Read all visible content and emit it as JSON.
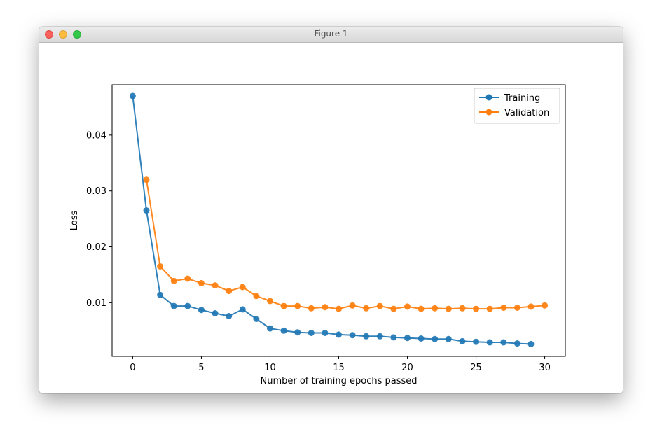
{
  "window": {
    "title": "Figure 1"
  },
  "chart_data": {
    "type": "line",
    "title": "",
    "xlabel": "Number of training epochs passed",
    "ylabel": "Loss",
    "xlim": [
      -1.5,
      31.5
    ],
    "ylim": [
      0.0004,
      0.049
    ],
    "xticks": [
      0,
      5,
      10,
      15,
      20,
      25,
      30
    ],
    "yticks": [
      0.01,
      0.02,
      0.03,
      0.04
    ],
    "ytick_labels": [
      "0.01",
      "0.02",
      "0.03",
      "0.04"
    ],
    "legend_position": "top-right",
    "grid": false,
    "series": [
      {
        "name": "Training",
        "color": "#1f77b4",
        "x": [
          0,
          1,
          2,
          3,
          4,
          5,
          6,
          7,
          8,
          9,
          10,
          11,
          12,
          13,
          14,
          15,
          16,
          17,
          18,
          19,
          20,
          21,
          22,
          23,
          24,
          25,
          26,
          27,
          28,
          29
        ],
        "y": [
          0.047,
          0.0265,
          0.0114,
          0.0094,
          0.0094,
          0.0087,
          0.0081,
          0.0076,
          0.0088,
          0.0071,
          0.0054,
          0.005,
          0.0047,
          0.0046,
          0.0046,
          0.0043,
          0.0042,
          0.004,
          0.004,
          0.0038,
          0.0037,
          0.0036,
          0.0035,
          0.0035,
          0.0031,
          0.003,
          0.0029,
          0.0029,
          0.0027,
          0.0026
        ]
      },
      {
        "name": "Validation",
        "color": "#ff7f0e",
        "x": [
          1,
          2,
          3,
          4,
          5,
          6,
          7,
          8,
          9,
          10,
          11,
          12,
          13,
          14,
          15,
          16,
          17,
          18,
          19,
          20,
          21,
          22,
          23,
          24,
          25,
          26,
          27,
          28,
          29,
          30
        ],
        "y": [
          0.032,
          0.0165,
          0.0139,
          0.0143,
          0.0135,
          0.0131,
          0.0121,
          0.0128,
          0.0112,
          0.0103,
          0.0094,
          0.0094,
          0.009,
          0.0092,
          0.0089,
          0.0095,
          0.009,
          0.0094,
          0.0089,
          0.0093,
          0.0089,
          0.009,
          0.0089,
          0.009,
          0.0089,
          0.0089,
          0.0091,
          0.0091,
          0.0093,
          0.0095
        ]
      }
    ]
  }
}
